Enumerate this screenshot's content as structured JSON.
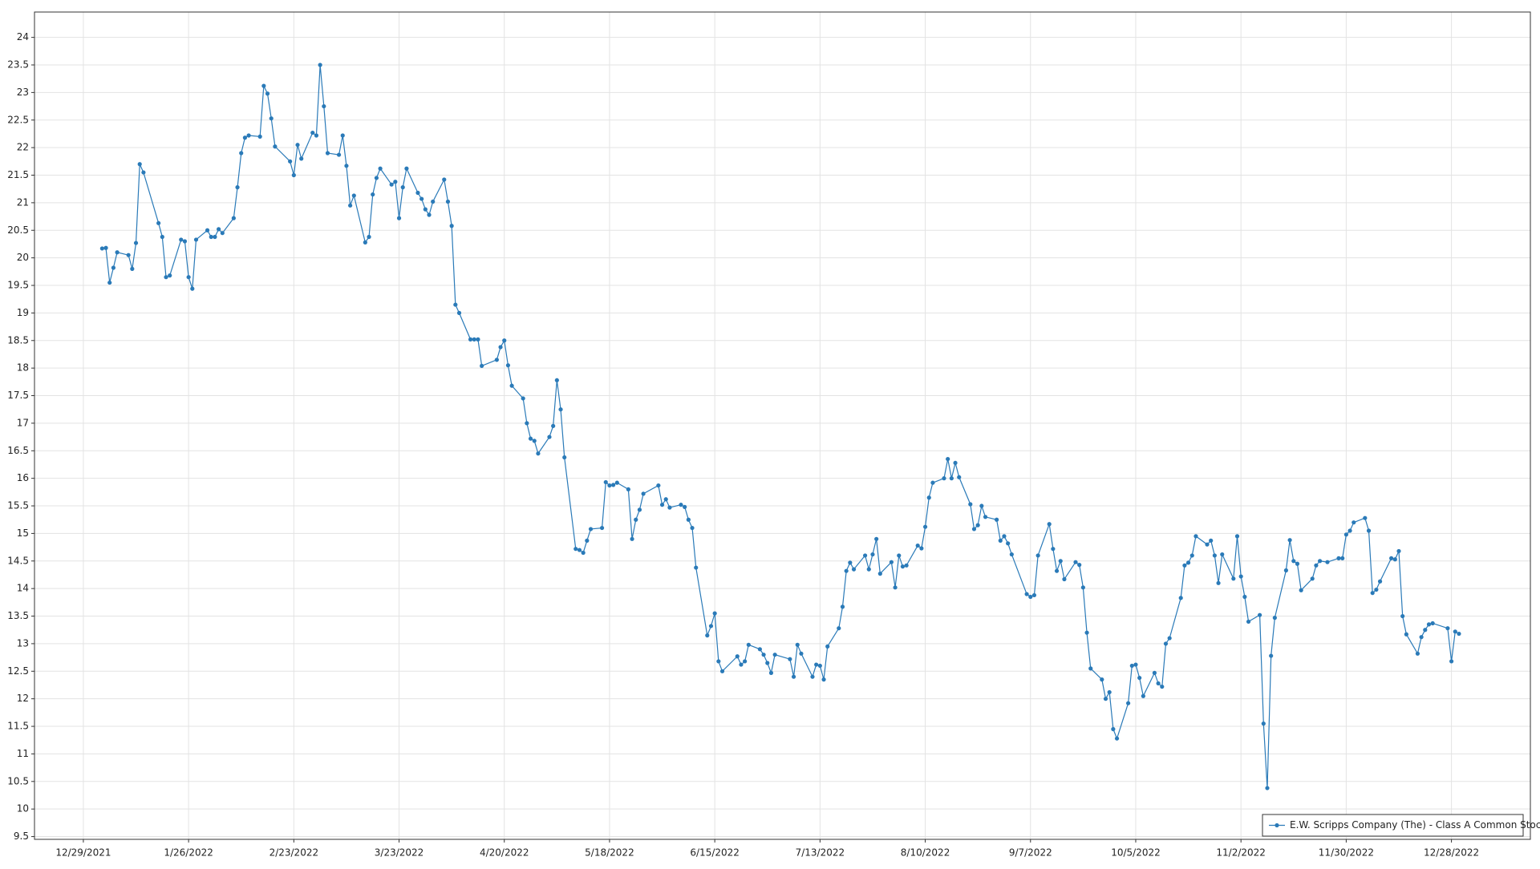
{
  "chart_data": {
    "type": "line",
    "x": [
      "1/3/2022",
      "1/4/2022",
      "1/5/2022",
      "1/6/2022",
      "1/7/2022",
      "1/10/2022",
      "1/11/2022",
      "1/12/2022",
      "1/13/2022",
      "1/14/2022",
      "1/18/2022",
      "1/19/2022",
      "1/20/2022",
      "1/21/2022",
      "1/24/2022",
      "1/25/2022",
      "1/26/2022",
      "1/27/2022",
      "1/28/2022",
      "1/31/2022",
      "2/1/2022",
      "2/2/2022",
      "2/3/2022",
      "2/4/2022",
      "2/7/2022",
      "2/8/2022",
      "2/9/2022",
      "2/10/2022",
      "2/11/2022",
      "2/14/2022",
      "2/15/2022",
      "2/16/2022",
      "2/17/2022",
      "2/18/2022",
      "2/22/2022",
      "2/23/2022",
      "2/24/2022",
      "2/25/2022",
      "2/28/2022",
      "3/1/2022",
      "3/2/2022",
      "3/3/2022",
      "3/4/2022",
      "3/7/2022",
      "3/8/2022",
      "3/9/2022",
      "3/10/2022",
      "3/11/2022",
      "3/14/2022",
      "3/15/2022",
      "3/16/2022",
      "3/17/2022",
      "3/18/2022",
      "3/21/2022",
      "3/22/2022",
      "3/23/2022",
      "3/24/2022",
      "3/25/2022",
      "3/28/2022",
      "3/29/2022",
      "3/30/2022",
      "3/31/2022",
      "4/1/2022",
      "4/4/2022",
      "4/5/2022",
      "4/6/2022",
      "4/7/2022",
      "4/8/2022",
      "4/11/2022",
      "4/12/2022",
      "4/13/2022",
      "4/14/2022",
      "4/18/2022",
      "4/19/2022",
      "4/20/2022",
      "4/21/2022",
      "4/22/2022",
      "4/25/2022",
      "4/26/2022",
      "4/27/2022",
      "4/28/2022",
      "4/29/2022",
      "5/2/2022",
      "5/3/2022",
      "5/4/2022",
      "5/5/2022",
      "5/6/2022",
      "5/9/2022",
      "5/10/2022",
      "5/11/2022",
      "5/12/2022",
      "5/13/2022",
      "5/16/2022",
      "5/17/2022",
      "5/18/2022",
      "5/19/2022",
      "5/20/2022",
      "5/23/2022",
      "5/24/2022",
      "5/25/2022",
      "5/26/2022",
      "5/27/2022",
      "5/31/2022",
      "6/1/2022",
      "6/2/2022",
      "6/3/2022",
      "6/6/2022",
      "6/7/2022",
      "6/8/2022",
      "6/9/2022",
      "6/10/2022",
      "6/13/2022",
      "6/14/2022",
      "6/15/2022",
      "6/16/2022",
      "6/17/2022",
      "6/21/2022",
      "6/22/2022",
      "6/23/2022",
      "6/24/2022",
      "6/27/2022",
      "6/28/2022",
      "6/29/2022",
      "6/30/2022",
      "7/1/2022",
      "7/5/2022",
      "7/6/2022",
      "7/7/2022",
      "7/8/2022",
      "7/11/2022",
      "7/12/2022",
      "7/13/2022",
      "7/14/2022",
      "7/15/2022",
      "7/18/2022",
      "7/19/2022",
      "7/20/2022",
      "7/21/2022",
      "7/22/2022",
      "7/25/2022",
      "7/26/2022",
      "7/27/2022",
      "7/28/2022",
      "7/29/2022",
      "8/1/2022",
      "8/2/2022",
      "8/3/2022",
      "8/4/2022",
      "8/5/2022",
      "8/8/2022",
      "8/9/2022",
      "8/10/2022",
      "8/11/2022",
      "8/12/2022",
      "8/15/2022",
      "8/16/2022",
      "8/17/2022",
      "8/18/2022",
      "8/19/2022",
      "8/22/2022",
      "8/23/2022",
      "8/24/2022",
      "8/25/2022",
      "8/26/2022",
      "8/29/2022",
      "8/30/2022",
      "8/31/2022",
      "9/1/2022",
      "9/2/2022",
      "9/6/2022",
      "9/7/2022",
      "9/8/2022",
      "9/9/2022",
      "9/12/2022",
      "9/13/2022",
      "9/14/2022",
      "9/15/2022",
      "9/16/2022",
      "9/19/2022",
      "9/20/2022",
      "9/21/2022",
      "9/22/2022",
      "9/23/2022",
      "9/26/2022",
      "9/27/2022",
      "9/28/2022",
      "9/29/2022",
      "9/30/2022",
      "10/3/2022",
      "10/4/2022",
      "10/5/2022",
      "10/6/2022",
      "10/7/2022",
      "10/10/2022",
      "10/11/2022",
      "10/12/2022",
      "10/13/2022",
      "10/14/2022",
      "10/17/2022",
      "10/18/2022",
      "10/19/2022",
      "10/20/2022",
      "10/21/2022",
      "10/24/2022",
      "10/25/2022",
      "10/26/2022",
      "10/27/2022",
      "10/28/2022",
      "10/31/2022",
      "11/1/2022",
      "11/2/2022",
      "11/3/2022",
      "11/4/2022",
      "11/7/2022",
      "11/8/2022",
      "11/9/2022",
      "11/10/2022",
      "11/11/2022",
      "11/14/2022",
      "11/15/2022",
      "11/16/2022",
      "11/17/2022",
      "11/18/2022",
      "11/21/2022",
      "11/22/2022",
      "11/23/2022",
      "11/25/2022",
      "11/28/2022",
      "11/29/2022",
      "11/30/2022",
      "12/1/2022",
      "12/2/2022",
      "12/5/2022",
      "12/6/2022",
      "12/7/2022",
      "12/8/2022",
      "12/9/2022",
      "12/12/2022",
      "12/13/2022",
      "12/14/2022",
      "12/15/2022",
      "12/16/2022",
      "12/19/2022",
      "12/20/2022",
      "12/21/2022",
      "12/22/2022",
      "12/23/2022",
      "12/27/2022",
      "12/28/2022",
      "12/29/2022",
      "12/30/2022"
    ],
    "series": [
      {
        "name": "E.W. Scripps Company (The) - Class A Common Stock",
        "color": "#2a7ab8",
        "values": [
          20.17,
          20.18,
          19.55,
          19.82,
          20.1,
          20.05,
          19.8,
          20.27,
          21.7,
          21.55,
          20.63,
          20.38,
          19.65,
          19.68,
          20.33,
          20.3,
          19.65,
          19.44,
          20.33,
          20.5,
          20.38,
          20.38,
          20.52,
          20.45,
          20.72,
          21.28,
          21.9,
          22.18,
          22.22,
          22.2,
          23.12,
          22.98,
          22.53,
          22.02,
          21.75,
          21.5,
          22.05,
          21.8,
          22.27,
          22.22,
          23.5,
          22.75,
          21.9,
          21.87,
          22.22,
          21.67,
          20.95,
          21.13,
          20.28,
          20.38,
          21.15,
          21.45,
          21.62,
          21.33,
          21.38,
          20.72,
          21.28,
          21.62,
          21.18,
          21.07,
          20.88,
          20.78,
          21.02,
          21.42,
          21.02,
          20.58,
          19.15,
          19.0,
          18.52,
          18.52,
          18.52,
          18.04,
          18.15,
          18.38,
          18.5,
          18.05,
          17.68,
          17.45,
          17.0,
          16.72,
          16.68,
          16.45,
          16.75,
          16.95,
          17.78,
          17.25,
          16.38,
          14.72,
          14.7,
          14.65,
          14.87,
          15.08,
          15.1,
          15.93,
          15.87,
          15.88,
          15.92,
          15.8,
          14.9,
          15.25,
          15.43,
          15.72,
          15.87,
          15.52,
          15.62,
          15.47,
          15.52,
          15.48,
          15.25,
          15.1,
          14.38,
          13.15,
          13.32,
          13.55,
          12.68,
          12.5,
          12.77,
          12.62,
          12.68,
          12.98,
          12.9,
          12.8,
          12.65,
          12.47,
          12.8,
          12.72,
          12.4,
          12.98,
          12.82,
          12.4,
          12.62,
          12.6,
          12.35,
          12.95,
          13.28,
          13.67,
          14.32,
          14.47,
          14.35,
          14.6,
          14.35,
          14.62,
          14.9,
          14.27,
          14.48,
          14.02,
          14.6,
          14.4,
          14.42,
          14.78,
          14.73,
          15.12,
          15.65,
          15.92,
          16.0,
          16.35,
          16.0,
          16.28,
          16.02,
          15.53,
          15.08,
          15.15,
          15.5,
          15.3,
          15.25,
          14.87,
          14.95,
          14.82,
          14.62,
          13.9,
          13.85,
          13.88,
          14.6,
          15.17,
          14.72,
          14.32,
          14.5,
          14.17,
          14.48,
          14.43,
          14.02,
          13.2,
          12.55,
          12.35,
          12.0,
          12.12,
          11.45,
          11.28,
          11.92,
          12.6,
          12.62,
          12.38,
          12.05,
          12.47,
          12.28,
          12.22,
          13.0,
          13.1,
          13.83,
          14.42,
          14.47,
          14.6,
          14.95,
          14.8,
          14.87,
          14.6,
          14.1,
          14.62,
          14.18,
          14.95,
          14.22,
          13.85,
          13.4,
          13.52,
          11.55,
          10.38,
          12.78,
          13.47,
          14.33,
          14.88,
          14.5,
          14.45,
          13.97,
          14.18,
          14.42,
          14.5,
          14.48,
          14.55,
          14.55,
          14.98,
          15.05,
          15.2,
          15.28,
          15.05,
          13.92,
          13.98,
          14.13,
          14.55,
          14.53,
          14.68,
          13.5,
          13.17,
          12.82,
          13.12,
          13.25,
          13.35,
          13.37,
          13.28,
          12.68,
          13.22,
          13.18
        ]
      }
    ],
    "xlim": [
      "12/16/2021",
      "1/18/2023"
    ],
    "xticks": [
      "12/29/2021",
      "1/26/2022",
      "2/23/2022",
      "3/23/2022",
      "4/20/2022",
      "5/18/2022",
      "6/15/2022",
      "7/13/2022",
      "8/10/2022",
      "9/7/2022",
      "10/5/2022",
      "11/2/2022",
      "11/30/2022",
      "12/28/2022"
    ],
    "ylim": [
      9.45,
      24.46
    ],
    "yticks": [
      9.5,
      10,
      10.5,
      11,
      11.5,
      12,
      12.5,
      13,
      13.5,
      14,
      14.5,
      15,
      15.5,
      16,
      16.5,
      17,
      17.5,
      18,
      18.5,
      19,
      19.5,
      20,
      20.5,
      21,
      21.5,
      22,
      22.5,
      23,
      23.5,
      24
    ],
    "grid": true,
    "legend": "lower right"
  }
}
